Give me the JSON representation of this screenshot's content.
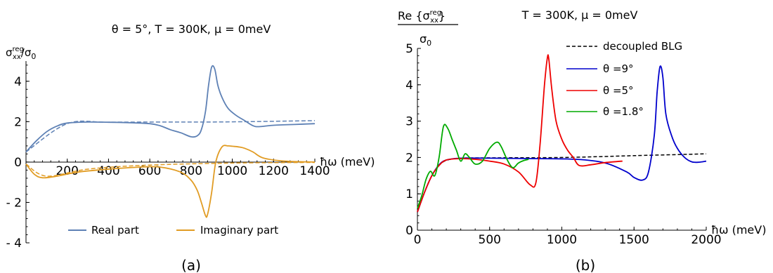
{
  "chart_data": [
    {
      "type": "line",
      "panel": "(a)",
      "title": "θ = 5°,   T = 300K,   μ = 0meV",
      "ylabel_main": "σ",
      "ylabel_sup": "reg",
      "ylabel_sub": "xx",
      "ylabel_tail": "/σ",
      "ylabel_tail_sub": "0",
      "xlabel": "ħω (meV)",
      "xlim": [
        0,
        1400
      ],
      "ylim": [
        -4,
        5
      ],
      "xticks": [
        200,
        400,
        600,
        800,
        1000,
        1200,
        1400
      ],
      "yticks": [
        -4,
        -2,
        0,
        2,
        4
      ],
      "ytick_labels": [
        "- 4",
        "- 2",
        "0",
        "2",
        "4"
      ],
      "legend_position": "bottom",
      "series": [
        {
          "name": "Real part",
          "color": "#5E81B5",
          "x": [
            0,
            50,
            100,
            150,
            200,
            300,
            400,
            500,
            600,
            650,
            700,
            750,
            800,
            830,
            850,
            870,
            885,
            900,
            915,
            930,
            950,
            980,
            1020,
            1060,
            1100,
            1130,
            1200,
            1300,
            1400
          ],
          "y": [
            0.5,
            1.05,
            1.5,
            1.78,
            1.93,
            1.98,
            1.97,
            1.95,
            1.9,
            1.8,
            1.6,
            1.45,
            1.25,
            1.3,
            1.6,
            2.5,
            3.8,
            4.7,
            4.6,
            3.8,
            3.2,
            2.65,
            2.3,
            2.05,
            1.8,
            1.75,
            1.82,
            1.86,
            1.9
          ]
        },
        {
          "name": "Imaginary part",
          "color": "#E19C24",
          "x": [
            0,
            40,
            80,
            150,
            250,
            400,
            550,
            650,
            750,
            800,
            830,
            850,
            870,
            880,
            900,
            920,
            950,
            980,
            1000,
            1030,
            1060,
            1100,
            1150,
            1250,
            1400
          ],
          "y": [
            -0.1,
            -0.6,
            -0.78,
            -0.7,
            -0.5,
            -0.35,
            -0.25,
            -0.25,
            -0.5,
            -0.9,
            -1.4,
            -2.0,
            -2.65,
            -2.6,
            -1.5,
            0.0,
            0.75,
            0.8,
            0.78,
            0.75,
            0.68,
            0.5,
            0.2,
            0.05,
            0.0
          ]
        },
        {
          "name": "",
          "color": "#5E81B5",
          "dashed": true,
          "x": [
            0,
            200,
            400,
            700,
            1000,
            1400
          ],
          "y": [
            0.5,
            1.9,
            1.97,
            1.98,
            1.99,
            2.05
          ]
        },
        {
          "name": "",
          "color": "#E19C24",
          "dashed": true,
          "x": [
            0,
            100,
            300,
            600,
            1000,
            1400
          ],
          "y": [
            -0.1,
            -0.7,
            -0.35,
            -0.15,
            -0.05,
            -0.02
          ]
        }
      ],
      "caption": "(a)"
    },
    {
      "type": "line",
      "panel": "(b)",
      "title": "T = 300K,   μ = 0meV",
      "ylabel_main": "Re {σ",
      "ylabel_sup": "reg",
      "ylabel_sub": "xx",
      "ylabel_close": "}",
      "ylabel_denominator": "σ",
      "ylabel_denominator_sub": "0",
      "xlabel": "ħω (meV)",
      "xlim": [
        0,
        2000
      ],
      "ylim": [
        0,
        5
      ],
      "xticks": [
        0,
        500,
        1000,
        1500,
        2000
      ],
      "yticks": [
        0,
        1,
        2,
        3,
        4,
        5
      ],
      "legend_position": "top-right",
      "series": [
        {
          "name": "decoupled BLG",
          "color": "#000000",
          "dashed": true,
          "x": [
            0,
            50,
            100,
            150,
            200,
            300,
            500,
            1000,
            1500,
            2000
          ],
          "y": [
            0.5,
            1.05,
            1.5,
            1.78,
            1.92,
            1.98,
            1.99,
            2.0,
            2.05,
            2.1
          ]
        },
        {
          "name": "θ =9°",
          "color": "#0000CC",
          "x": [
            0,
            50,
            100,
            150,
            200,
            300,
            500,
            800,
            1100,
            1300,
            1450,
            1500,
            1560,
            1600,
            1640,
            1660,
            1680,
            1700,
            1720,
            1760,
            1800,
            1850,
            1900,
            1950,
            2000
          ],
          "y": [
            0.5,
            1.05,
            1.5,
            1.8,
            1.93,
            1.98,
            1.98,
            1.97,
            1.95,
            1.85,
            1.6,
            1.45,
            1.38,
            1.6,
            2.6,
            3.8,
            4.5,
            4.2,
            3.2,
            2.6,
            2.25,
            2.0,
            1.88,
            1.87,
            1.9
          ]
        },
        {
          "name": "θ =5°",
          "color": "#EE0000",
          "x": [
            0,
            50,
            100,
            150,
            200,
            300,
            400,
            500,
            600,
            700,
            780,
            820,
            850,
            880,
            900,
            910,
            930,
            960,
            1000,
            1040,
            1080,
            1120,
            1200,
            1300,
            1420
          ],
          "y": [
            0.5,
            1.05,
            1.5,
            1.78,
            1.93,
            1.97,
            1.95,
            1.9,
            1.82,
            1.6,
            1.25,
            1.3,
            2.4,
            4.0,
            4.75,
            4.7,
            3.9,
            3.0,
            2.5,
            2.2,
            2.0,
            1.78,
            1.8,
            1.86,
            1.9
          ]
        },
        {
          "name": "θ =1.8°",
          "color": "#00AA00",
          "x": [
            0,
            30,
            60,
            90,
            120,
            150,
            180,
            210,
            240,
            270,
            300,
            330,
            360,
            400,
            450,
            500,
            550,
            580,
            620,
            660,
            700,
            740,
            770
          ],
          "y": [
            0.6,
            0.95,
            1.4,
            1.62,
            1.5,
            2.0,
            2.85,
            2.8,
            2.5,
            2.2,
            1.9,
            2.1,
            2.0,
            1.82,
            1.9,
            2.25,
            2.42,
            2.3,
            1.95,
            1.72,
            1.85,
            1.92,
            1.95
          ]
        }
      ],
      "caption": "(b)"
    }
  ]
}
